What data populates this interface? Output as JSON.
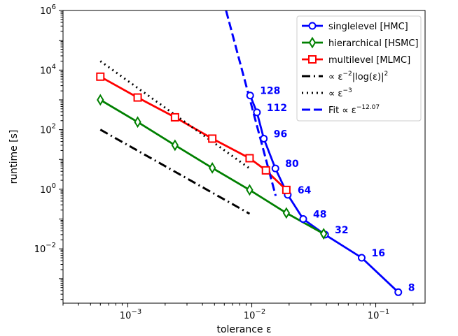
{
  "chart_data": {
    "type": "line",
    "xlabel": "tolerance ε",
    "ylabel": "runtime [s]",
    "xscale": "log",
    "yscale": "log",
    "xlim": [
      0.0003,
      0.25
    ],
    "ylim": [
      0.00015,
      1000000
    ],
    "x_ticks": [
      {
        "value": 0.001,
        "base": "10",
        "exp": "−3"
      },
      {
        "value": 0.01,
        "base": "10",
        "exp": "−2"
      },
      {
        "value": 0.1,
        "base": "10",
        "exp": "−1"
      }
    ],
    "y_ticks": [
      {
        "value": 0.01,
        "base": "10",
        "exp": "−2"
      },
      {
        "value": 1,
        "base": "10",
        "exp": "0"
      },
      {
        "value": 100,
        "base": "10",
        "exp": "2"
      },
      {
        "value": 10000,
        "base": "10",
        "exp": "4"
      },
      {
        "value": 1000000,
        "base": "10",
        "exp": "6"
      }
    ],
    "series": [
      {
        "name": "singlelevel [HMC]",
        "color": "#0000ff",
        "marker": "circle",
        "style": "solid",
        "x": [
          0.0097,
          0.011,
          0.0125,
          0.0155,
          0.0195,
          0.026,
          0.039,
          0.077,
          0.152
        ],
        "y": [
          1400,
          380,
          50,
          5,
          0.65,
          0.1,
          0.03,
          0.005,
          0.00035
        ],
        "point_labels": [
          "128",
          "112",
          "96",
          "80",
          "64",
          "48",
          "32",
          "16",
          "8"
        ]
      },
      {
        "name": "hierarchical [HSMC]",
        "color": "#008000",
        "marker": "thin_diamond",
        "style": "solid",
        "x": [
          0.0006,
          0.0012,
          0.0024,
          0.0048,
          0.0096,
          0.019,
          0.038
        ],
        "y": [
          1000,
          180,
          30,
          5.2,
          0.95,
          0.16,
          0.032
        ]
      },
      {
        "name": "multilevel [MLMC]",
        "color": "#ff0000",
        "marker": "square",
        "style": "solid",
        "x": [
          0.0006,
          0.0012,
          0.0024,
          0.0048,
          0.0096,
          0.013,
          0.019
        ],
        "y": [
          6000,
          1200,
          260,
          50,
          11,
          4.3,
          0.95
        ]
      },
      {
        "name": "∝ε⁻²|log(ε)|²",
        "color": "#000000",
        "marker": "none",
        "style": "dashdot",
        "x": [
          0.0006,
          0.0096
        ],
        "y": [
          100,
          0.15
        ]
      },
      {
        "name": "∝ε⁻³",
        "color": "#000000",
        "marker": "none",
        "style": "dotted",
        "x": [
          0.0006,
          0.0096
        ],
        "y": [
          20000,
          5
        ]
      },
      {
        "name": "Fit ∝ε⁻¹²·⁰⁷",
        "color": "#0000ff",
        "marker": "none",
        "style": "dashed",
        "x": [
          0.0062,
          0.0156
        ],
        "y": [
          1000000,
          0.6
        ]
      }
    ],
    "legend": {
      "position": "top-right",
      "entries": [
        {
          "series": 0,
          "text": "singlelevel [HMC]"
        },
        {
          "series": 1,
          "text": "hierarchical [HSMC]"
        },
        {
          "series": 2,
          "text": "multilevel [MLMC]"
        },
        {
          "series": 3,
          "prefix": "∝ ε",
          "sup": "−2",
          "suffix": "|log(ε)|",
          "sup2": "2"
        },
        {
          "series": 4,
          "prefix": "∝ ε",
          "sup": "−3",
          "suffix": "",
          "sup2": ""
        },
        {
          "series": 5,
          "prefix": "Fit  ∝ ε",
          "sup": "−12.07",
          "suffix": "",
          "sup2": ""
        }
      ]
    },
    "grid": false
  }
}
